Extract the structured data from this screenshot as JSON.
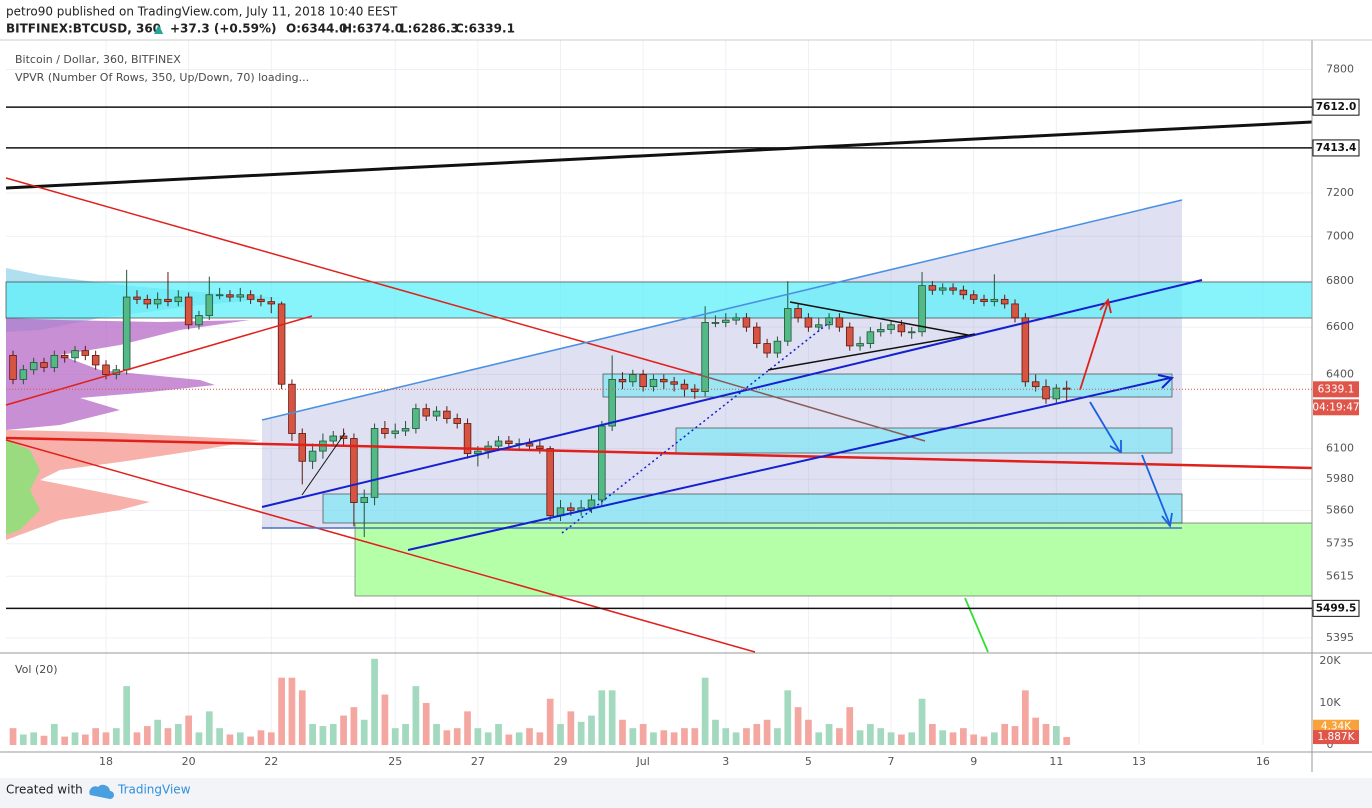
{
  "header": {
    "published": "petro90 published on TradingView.com, July 11, 2018 10:40 EEST",
    "symbol": "BITFINEX:BTCUSD, 360",
    "arrow": "▲",
    "change": "+37.3 (+0.59%)",
    "ohlc": [
      "O:6344.0",
      "H:6374.0",
      "L:6286.3",
      "C:6339.1"
    ]
  },
  "footer": {
    "created": "Created with",
    "brand": "TradingView"
  },
  "chart_data": {
    "type": "candlestick",
    "title": "Bitcoin / Dollar, 360, BITFINEX",
    "indicator": "VPVR (Number Of Rows, 350, Up/Down, 70) loading...",
    "log": true,
    "grid": true,
    "up_color": "#53b987",
    "down_color": "#d75442",
    "xlim": [
      -0.68,
      125.75
    ],
    "xticks": [
      {
        "value": 9,
        "label": "18"
      },
      {
        "value": 17,
        "label": "20"
      },
      {
        "value": 25,
        "label": "22"
      },
      {
        "value": 37,
        "label": "25"
      },
      {
        "value": 45,
        "label": "27"
      },
      {
        "value": 53,
        "label": "29"
      },
      {
        "value": 61,
        "label": "Jul"
      },
      {
        "value": 69,
        "label": "3"
      },
      {
        "value": 77,
        "label": "5"
      },
      {
        "value": 85,
        "label": "7"
      },
      {
        "value": 93,
        "label": "9"
      },
      {
        "value": 101,
        "label": "11"
      },
      {
        "value": 109,
        "label": "13"
      },
      {
        "value": 121,
        "label": "16"
      }
    ],
    "ylim": [
      5346,
      7951
    ],
    "yticks": [
      5395,
      5615,
      5735,
      5860,
      5980,
      6100,
      6400,
      6600,
      6800,
      7000,
      7200,
      7800
    ],
    "levels": [
      {
        "value": 7612,
        "label": "7612.0"
      },
      {
        "value": 7413.4,
        "label": "7413.4"
      },
      {
        "value": 5499.5,
        "label": "5499.5"
      }
    ],
    "last_price": 6339.1,
    "countdown": "04:19:47",
    "ohlc": [
      [
        6480,
        6500,
        6360,
        6380
      ],
      [
        6380,
        6440,
        6360,
        6420
      ],
      [
        6420,
        6470,
        6400,
        6450
      ],
      [
        6450,
        6470,
        6410,
        6430
      ],
      [
        6430,
        6500,
        6410,
        6480
      ],
      [
        6480,
        6500,
        6450,
        6470
      ],
      [
        6470,
        6520,
        6450,
        6500
      ],
      [
        6500,
        6520,
        6460,
        6480
      ],
      [
        6480,
        6500,
        6420,
        6440
      ],
      [
        6440,
        6460,
        6380,
        6400
      ],
      [
        6400,
        6440,
        6380,
        6420
      ],
      [
        6420,
        6850,
        6400,
        6730
      ],
      [
        6730,
        6760,
        6700,
        6720
      ],
      [
        6720,
        6740,
        6680,
        6700
      ],
      [
        6700,
        6750,
        6680,
        6720
      ],
      [
        6720,
        6840,
        6690,
        6710
      ],
      [
        6710,
        6760,
        6690,
        6730
      ],
      [
        6730,
        6750,
        6590,
        6610
      ],
      [
        6610,
        6670,
        6590,
        6650
      ],
      [
        6650,
        6820,
        6630,
        6740
      ],
      [
        6740,
        6770,
        6720,
        6740
      ],
      [
        6740,
        6760,
        6710,
        6730
      ],
      [
        6730,
        6770,
        6710,
        6740
      ],
      [
        6740,
        6760,
        6700,
        6720
      ],
      [
        6720,
        6740,
        6690,
        6710
      ],
      [
        6710,
        6730,
        6660,
        6700
      ],
      [
        6700,
        6710,
        6340,
        6360
      ],
      [
        6360,
        6380,
        6130,
        6160
      ],
      [
        6160,
        6180,
        5960,
        6050
      ],
      [
        6050,
        6120,
        6020,
        6090
      ],
      [
        6090,
        6160,
        6060,
        6130
      ],
      [
        6130,
        6170,
        6110,
        6150
      ],
      [
        6150,
        6180,
        6110,
        6140
      ],
      [
        6140,
        6160,
        5800,
        5890
      ],
      [
        5890,
        5940,
        5760,
        5910
      ],
      [
        5910,
        6200,
        5880,
        6180
      ],
      [
        6180,
        6210,
        6140,
        6160
      ],
      [
        6160,
        6200,
        6140,
        6170
      ],
      [
        6170,
        6210,
        6150,
        6180
      ],
      [
        6180,
        6280,
        6160,
        6260
      ],
      [
        6260,
        6280,
        6210,
        6230
      ],
      [
        6230,
        6270,
        6210,
        6250
      ],
      [
        6250,
        6270,
        6200,
        6220
      ],
      [
        6220,
        6240,
        6180,
        6200
      ],
      [
        6200,
        6220,
        6060,
        6080
      ],
      [
        6080,
        6110,
        6030,
        6090
      ],
      [
        6090,
        6130,
        6060,
        6110
      ],
      [
        6110,
        6150,
        6090,
        6130
      ],
      [
        6130,
        6150,
        6100,
        6120
      ],
      [
        6120,
        6140,
        6090,
        6120
      ],
      [
        6120,
        6140,
        6090,
        6110
      ],
      [
        6110,
        6130,
        6080,
        6100
      ],
      [
        6100,
        6110,
        5820,
        5840
      ],
      [
        5840,
        5900,
        5820,
        5870
      ],
      [
        5870,
        5890,
        5840,
        5860
      ],
      [
        5860,
        5900,
        5840,
        5870
      ],
      [
        5870,
        5920,
        5850,
        5900
      ],
      [
        5900,
        6210,
        5880,
        6190
      ],
      [
        6190,
        6480,
        6170,
        6380
      ],
      [
        6380,
        6410,
        6340,
        6370
      ],
      [
        6370,
        6420,
        6350,
        6400
      ],
      [
        6400,
        6420,
        6330,
        6350
      ],
      [
        6350,
        6400,
        6330,
        6380
      ],
      [
        6380,
        6400,
        6340,
        6370
      ],
      [
        6370,
        6390,
        6330,
        6360
      ],
      [
        6360,
        6380,
        6310,
        6340
      ],
      [
        6340,
        6360,
        6300,
        6330
      ],
      [
        6330,
        6690,
        6310,
        6620
      ],
      [
        6620,
        6650,
        6600,
        6620
      ],
      [
        6620,
        6660,
        6600,
        6630
      ],
      [
        6630,
        6660,
        6610,
        6640
      ],
      [
        6640,
        6660,
        6580,
        6600
      ],
      [
        6600,
        6620,
        6510,
        6530
      ],
      [
        6530,
        6550,
        6470,
        6490
      ],
      [
        6490,
        6560,
        6470,
        6540
      ],
      [
        6540,
        6800,
        6520,
        6680
      ],
      [
        6680,
        6700,
        6620,
        6640
      ],
      [
        6640,
        6660,
        6580,
        6600
      ],
      [
        6600,
        6640,
        6580,
        6610
      ],
      [
        6610,
        6660,
        6590,
        6640
      ],
      [
        6640,
        6660,
        6580,
        6600
      ],
      [
        6600,
        6620,
        6500,
        6520
      ],
      [
        6520,
        6560,
        6500,
        6530
      ],
      [
        6530,
        6600,
        6510,
        6580
      ],
      [
        6580,
        6620,
        6560,
        6590
      ],
      [
        6590,
        6630,
        6570,
        6610
      ],
      [
        6610,
        6630,
        6560,
        6580
      ],
      [
        6580,
        6600,
        6550,
        6580
      ],
      [
        6580,
        6840,
        6560,
        6780
      ],
      [
        6780,
        6800,
        6740,
        6760
      ],
      [
        6760,
        6790,
        6740,
        6770
      ],
      [
        6770,
        6790,
        6740,
        6760
      ],
      [
        6760,
        6780,
        6720,
        6740
      ],
      [
        6740,
        6760,
        6700,
        6720
      ],
      [
        6720,
        6740,
        6690,
        6710
      ],
      [
        6710,
        6830,
        6690,
        6720
      ],
      [
        6720,
        6740,
        6680,
        6700
      ],
      [
        6700,
        6720,
        6620,
        6640
      ],
      [
        6640,
        6660,
        6350,
        6370
      ],
      [
        6370,
        6400,
        6330,
        6350
      ],
      [
        6350,
        6380,
        6280,
        6300
      ],
      [
        6300,
        6360,
        6280,
        6344
      ],
      [
        6344,
        6374,
        6286.3,
        6339.1
      ]
    ],
    "volume": {
      "title": "Vol (20)",
      "ylim": [
        0,
        21400
      ],
      "yticks": [
        0,
        {
          "value": 10000,
          "label": "10K"
        },
        {
          "value": 20000,
          "label": "20K"
        }
      ],
      "up_color": "#a3d9bf",
      "down_color": "#f4a7a0",
      "values": [
        4000,
        2500,
        3000,
        2200,
        5000,
        2000,
        3000,
        2500,
        4000,
        3000,
        4000,
        14000,
        3000,
        4500,
        6000,
        4000,
        5000,
        7000,
        3000,
        8000,
        4000,
        2500,
        3000,
        2000,
        3500,
        3000,
        16000,
        16000,
        13000,
        5000,
        4500,
        5000,
        7000,
        9000,
        6000,
        20500,
        12000,
        4000,
        5000,
        14000,
        10000,
        5000,
        3500,
        4000,
        8000,
        4000,
        3000,
        5000,
        2500,
        3000,
        4000,
        3000,
        11000,
        5000,
        8000,
        5500,
        7000,
        13000,
        13000,
        6000,
        4000,
        5000,
        3000,
        3500,
        3000,
        4000,
        4000,
        16000,
        6000,
        4000,
        3000,
        4000,
        5000,
        6000,
        4000,
        13000,
        9000,
        6000,
        3000,
        5000,
        4000,
        9000,
        3500,
        5000,
        4000,
        3000,
        2500,
        3000,
        11000,
        5000,
        3500,
        3000,
        4000,
        2500,
        2000,
        3000,
        5000,
        4500,
        13000,
        6500,
        5000,
        4500,
        1887
      ],
      "tags": [
        {
          "value": 4340,
          "label": "4.34K"
        },
        {
          "value": 1887,
          "label": "1.887K"
        }
      ]
    }
  }
}
